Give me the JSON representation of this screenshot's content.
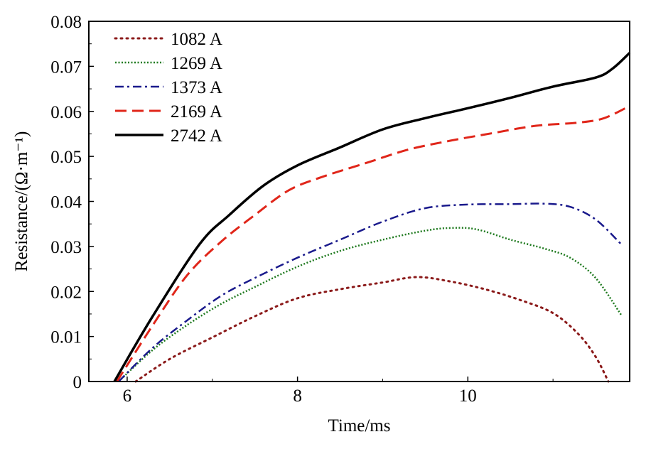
{
  "chart_data": {
    "type": "line",
    "xlabel": "Time/ms",
    "ylabel": "Resistance/(Ω·m⁻¹)",
    "xlim": [
      5.55,
      11.9
    ],
    "ylim": [
      0,
      0.08
    ],
    "xticks": [
      6,
      8,
      10
    ],
    "xtick_labels": [
      "6",
      "8",
      "10"
    ],
    "yticks": [
      0,
      0.01,
      0.02,
      0.03,
      0.04,
      0.05,
      0.06,
      0.07,
      0.08
    ],
    "ytick_labels": [
      "0",
      "0.01",
      "0.02",
      "0.03",
      "0.04",
      "0.05",
      "0.06",
      "0.07",
      "0.08"
    ],
    "grid": false,
    "legend_position": "top-left",
    "series": [
      {
        "name": "1082 A",
        "color": "#8b1a1a",
        "style": "dotted",
        "x": [
          6.1,
          6.5,
          7.0,
          7.5,
          8.0,
          8.5,
          9.0,
          9.4,
          9.8,
          10.2,
          10.6,
          11.0,
          11.3,
          11.5,
          11.65
        ],
        "y": [
          0,
          0.005,
          0.0098,
          0.0145,
          0.0185,
          0.0205,
          0.022,
          0.0232,
          0.0222,
          0.0205,
          0.0182,
          0.0152,
          0.0105,
          0.0055,
          0
        ]
      },
      {
        "name": "1269 A",
        "color": "#1f7a1f",
        "style": "dotted-dense",
        "x": [
          5.9,
          6.3,
          6.7,
          7.1,
          7.5,
          8.0,
          8.5,
          9.0,
          9.5,
          9.8,
          10.1,
          10.5,
          10.9,
          11.2,
          11.5,
          11.8
        ],
        "y": [
          0,
          0.007,
          0.0125,
          0.0172,
          0.021,
          0.0255,
          0.029,
          0.0315,
          0.0335,
          0.0341,
          0.0338,
          0.0315,
          0.0295,
          0.0275,
          0.023,
          0.0148
        ]
      },
      {
        "name": "1373 A",
        "color": "#1a1a8c",
        "style": "dashdot",
        "x": [
          5.9,
          6.3,
          6.7,
          7.1,
          7.5,
          8.0,
          8.5,
          9.0,
          9.5,
          10.0,
          10.5,
          10.9,
          11.2,
          11.5,
          11.8
        ],
        "y": [
          0,
          0.0075,
          0.0135,
          0.019,
          0.023,
          0.0275,
          0.0315,
          0.0355,
          0.0385,
          0.0393,
          0.0394,
          0.0395,
          0.0388,
          0.036,
          0.0305
        ]
      },
      {
        "name": "2169 A",
        "color": "#e0261a",
        "style": "dashed",
        "x": [
          5.88,
          6.3,
          6.7,
          7.1,
          7.5,
          7.9,
          8.3,
          8.8,
          9.3,
          9.8,
          10.3,
          10.8,
          11.3,
          11.6,
          11.9
        ],
        "y": [
          0,
          0.0125,
          0.0235,
          0.031,
          0.037,
          0.0425,
          0.0455,
          0.0485,
          0.0515,
          0.0535,
          0.0552,
          0.0568,
          0.0575,
          0.0585,
          0.0612
        ]
      },
      {
        "name": "2742 A",
        "color": "#000000",
        "style": "solid",
        "x": [
          5.85,
          6.3,
          6.85,
          7.2,
          7.6,
          8.0,
          8.5,
          9.0,
          9.5,
          10.0,
          10.5,
          11.0,
          11.5,
          11.7,
          11.9
        ],
        "y": [
          0,
          0.0145,
          0.0305,
          0.037,
          0.0435,
          0.048,
          0.052,
          0.056,
          0.0585,
          0.0607,
          0.063,
          0.0655,
          0.0675,
          0.0695,
          0.073
        ]
      }
    ]
  }
}
